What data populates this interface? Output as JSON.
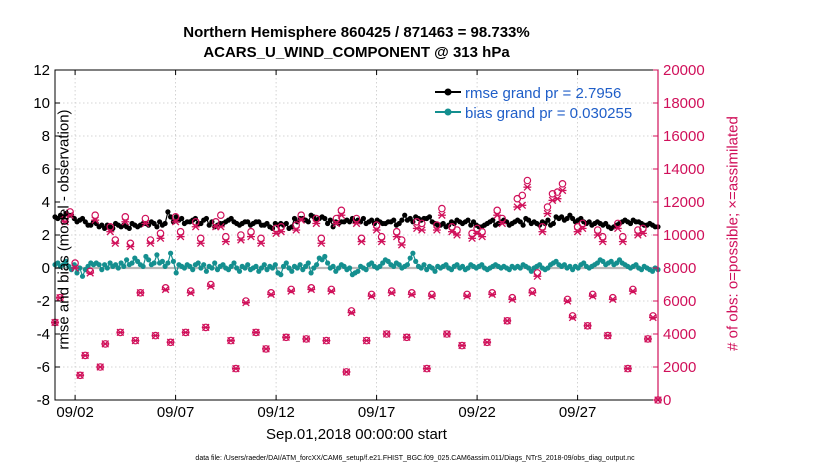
{
  "chart_data": {
    "type": "line",
    "title": "Northern Hemisphere 860425 / 871463 = 98.733%",
    "subtitle": "ACARS_U_WIND_COMPONENT @ 313 hPa",
    "xlabel": "Sep.01,2018 00:00:00 start",
    "ylabel_left": "rmse and bias (model - observation)",
    "ylabel_right": "# of obs: o=possible; ×=assimilated",
    "footer": "data file: /Users/raeder/DAI/ATM_forcXX/CAM6_setup/f.e21.FHIST_BGC.f09_025.CAM6assim.011/Diags_NTrS_2018-09/obs_diag_output.nc",
    "xlim": [
      1.0,
      31.0
    ],
    "ylim_left": [
      -8,
      12
    ],
    "ylim_right": [
      0,
      20000
    ],
    "x_ticks": [
      2,
      7,
      12,
      17,
      22,
      27
    ],
    "x_tick_labels": [
      "09/02",
      "09/07",
      "09/12",
      "09/17",
      "09/22",
      "09/27"
    ],
    "y_ticks_left": [
      "12",
      "10",
      "8",
      "6",
      "4",
      "2",
      "0",
      "-2",
      "-4",
      "-6",
      "-8"
    ],
    "y_ticks_right": [
      "20000",
      "18000",
      "16000",
      "14000",
      "12000",
      "10000",
      "8000",
      "6000",
      "4000",
      "2000",
      "0"
    ],
    "grid": true,
    "legend_position": "top-right",
    "colors": {
      "rmse": "#000000",
      "bias": "#148f8f",
      "obs": "#d0105a",
      "zero_line": "#b8b8b8"
    },
    "series": [
      {
        "name": "rmse grand pr = 2.7956",
        "label": "rmse grand pr = 2.7956",
        "color": "#000000",
        "marker": "circle",
        "values": [
          3.1,
          3.0,
          3.2,
          3.1,
          3.3,
          3.2,
          3.2,
          3.0,
          2.8,
          2.9,
          3.0,
          2.8,
          2.6,
          2.6,
          2.8,
          2.7,
          2.5,
          2.6,
          2.4,
          2.6,
          2.5,
          2.4,
          2.7,
          2.6,
          2.5,
          2.6,
          2.5,
          2.4,
          2.7,
          2.6,
          2.5,
          2.6,
          2.7,
          2.7,
          2.6,
          2.8,
          2.7,
          2.5,
          2.8,
          2.6,
          2.7,
          3.4,
          3.1,
          2.8,
          3.1,
          2.9,
          3.0,
          2.7,
          2.8,
          2.8,
          2.9,
          3.0,
          2.7,
          2.7,
          2.9,
          3.0,
          2.6,
          2.8,
          2.5,
          2.6,
          2.7,
          2.7,
          2.8,
          2.9,
          3.0,
          2.8,
          2.7,
          2.6,
          2.7,
          2.8,
          2.8,
          2.6,
          2.7,
          2.8,
          2.8,
          2.6,
          2.6,
          2.7,
          2.5,
          2.4,
          2.7,
          2.6,
          2.7,
          2.6,
          2.7,
          2.4,
          2.5,
          3.0,
          2.8,
          3.0,
          3.0,
          2.9,
          2.8,
          3.2,
          3.1,
          2.9,
          3.0,
          3.1,
          3.0,
          2.7,
          2.9,
          2.5,
          2.8,
          2.7,
          2.8,
          2.8,
          2.9,
          2.8,
          3.0,
          2.8,
          2.9,
          2.8,
          3.0,
          2.7,
          2.8,
          2.9,
          2.7,
          2.9,
          2.8,
          2.7,
          2.7,
          2.8,
          2.8,
          2.9,
          2.6,
          2.7,
          2.9,
          3.2,
          2.9,
          3.0,
          2.8,
          3.1,
          3.0,
          2.9,
          3.0,
          3.0,
          3.1,
          2.8,
          2.7,
          2.6,
          2.6,
          2.7,
          2.5,
          2.6,
          2.8,
          2.7,
          2.9,
          2.8,
          2.7,
          2.8,
          2.9,
          2.6,
          2.8,
          2.6,
          2.5,
          2.5,
          2.6,
          2.7,
          2.8,
          2.9,
          2.6,
          2.7,
          2.8,
          2.9,
          2.8,
          2.6,
          2.7,
          2.8,
          2.9,
          2.8,
          2.6,
          3.0,
          2.9,
          2.7,
          2.8,
          2.7,
          2.6,
          2.8,
          2.7,
          2.9,
          2.6,
          2.7,
          3.1,
          3.0,
          3.1,
          2.9,
          3.0,
          3.2,
          3.0,
          2.8,
          2.9,
          3.0,
          2.8,
          2.7,
          2.8,
          2.6,
          2.7,
          2.8,
          2.7,
          2.6,
          2.7,
          2.5,
          2.4,
          2.5,
          2.6,
          2.7,
          2.8,
          2.9,
          2.8,
          2.7,
          2.9,
          2.8,
          2.8,
          2.7,
          2.6,
          2.6,
          2.7,
          2.6,
          2.5,
          2.5
        ]
      },
      {
        "name": "bias grand pr = 0.030255",
        "label": "bias grand pr = 0.030255",
        "color": "#148f8f",
        "marker": "circle",
        "values": [
          0.2,
          0.3,
          0.1,
          0.2,
          0.4,
          0.1,
          -0.1,
          0.2,
          -0.3,
          0.0,
          -0.5,
          -0.1,
          0.1,
          0.3,
          0.2,
          0.3,
          0.2,
          -0.1,
          0.2,
          0.0,
          0.3,
          0.1,
          0.2,
          0.0,
          0.3,
          0.1,
          0.5,
          0.2,
          0.3,
          0.6,
          0.4,
          0.2,
          0.1,
          0.7,
          0.5,
          0.2,
          0.3,
          0.8,
          0.3,
          0.4,
          0.1,
          0.3,
          0.9,
          0.4,
          -0.3,
          0.2,
          0.1,
          0.0,
          0.2,
          0.1,
          -0.1,
          0.2,
          0.3,
          0.0,
          0.2,
          -0.2,
          0.1,
          0.0,
          0.3,
          -0.1,
          0.1,
          0.2,
          0.0,
          -0.1,
          0.1,
          0.3,
          0.0,
          -0.2,
          0.1,
          0.0,
          0.2,
          -0.1,
          0.0,
          0.1,
          -0.2,
          0.0,
          0.2,
          -0.1,
          0.1,
          0.0,
          0.2,
          -0.3,
          -0.4,
          0.1,
          0.3,
          0.0,
          -0.2,
          0.1,
          0.0,
          0.2,
          -0.1,
          0.1,
          0.3,
          -0.3,
          0.0,
          0.2,
          0.6,
          0.5,
          0.7,
          0.3,
          0.0,
          0.1,
          -0.2,
          0.0,
          0.2,
          0.1,
          -0.1,
          0.0,
          -0.4,
          -0.3,
          -0.2,
          0.1,
          0.0,
          -0.1,
          0.2,
          0.3,
          0.1,
          0.0,
          0.1,
          0.3,
          0.5,
          0.4,
          0.2,
          0.1,
          0.3,
          0.2,
          0.0,
          0.1,
          0.2,
          0.6,
          0.9,
          0.4,
          0.1,
          0.0,
          0.2,
          -0.1,
          0.1,
          0.0,
          -0.2,
          0.1,
          0.0,
          0.1,
          0.2,
          0.0,
          -0.1,
          0.1,
          0.2,
          0.0,
          0.1,
          -0.1,
          0.0,
          0.2,
          0.1,
          0.0,
          0.1,
          0.2,
          0.0,
          -0.1,
          0.0,
          0.1,
          0.2,
          0.1,
          0.0,
          0.1,
          0.0,
          -0.1,
          0.1,
          0.0,
          0.1,
          0.0,
          0.2,
          0.1,
          0.0,
          -0.2,
          0.0,
          0.1,
          0.2,
          0.0,
          -0.1,
          0.0,
          0.2,
          0.3,
          0.4,
          0.2,
          0.1,
          0.2,
          0.0,
          0.1,
          -0.1,
          0.1,
          0.0,
          0.2,
          0.3,
          0.1,
          0.0,
          0.1,
          0.2,
          0.3,
          0.5,
          0.4,
          0.2,
          0.3,
          0.4,
          0.2,
          0.3,
          0.5,
          0.3,
          0.2,
          0.1,
          0.0,
          0.1,
          0.2,
          0.0,
          -0.1,
          0.1,
          0.0,
          -0.1,
          -0.2,
          0.0,
          -0.1
        ]
      },
      {
        "name": "# of obs possible",
        "color": "#d0105a",
        "marker": "circle-open",
        "x": [
          1.0,
          1.25,
          1.5,
          1.75,
          2.0,
          2.25,
          2.5,
          2.75,
          3.0,
          3.25,
          3.5,
          3.75,
          4.0,
          4.25,
          4.5,
          4.75,
          5.0,
          5.25,
          5.5,
          5.75,
          6.0,
          6.25,
          6.5,
          6.75,
          7.0,
          7.25,
          7.5,
          7.75,
          8.0,
          8.25,
          8.5,
          8.75,
          9.0,
          9.25,
          9.5,
          9.75,
          10.0,
          10.25,
          10.5,
          10.75,
          11.0,
          11.25,
          11.5,
          11.75,
          12.0,
          12.25,
          12.5,
          12.75,
          13.0,
          13.25,
          13.5,
          13.75,
          14.0,
          14.25,
          14.5,
          14.75,
          15.0,
          15.25,
          15.5,
          15.75,
          16.0,
          16.25,
          16.5,
          16.75,
          17.0,
          17.25,
          17.5,
          17.75,
          18.0,
          18.25,
          18.5,
          18.75,
          19.0,
          19.25,
          19.5,
          19.75,
          20.0,
          20.25,
          20.5,
          20.75,
          21.0,
          21.25,
          21.5,
          21.75,
          22.0,
          22.25,
          22.5,
          22.75,
          23.0,
          23.25,
          23.5,
          23.75,
          24.0,
          24.25,
          24.5,
          24.75,
          25.0,
          25.25,
          25.5,
          25.75,
          26.0,
          26.25,
          26.5,
          26.75,
          27.0,
          27.25,
          27.5,
          27.75,
          28.0,
          28.25,
          28.5,
          28.75,
          29.0,
          29.25,
          29.5,
          29.75,
          30.0,
          30.25,
          30.5,
          30.75,
          31.0
        ],
        "values": [
          4700,
          6200,
          11000,
          11400,
          8300,
          1500,
          2700,
          7800,
          11200,
          2000,
          3400,
          10500,
          9700,
          4100,
          11100,
          9500,
          3600,
          6500,
          11000,
          9700,
          3900,
          10100,
          6800,
          3500,
          11100,
          10200,
          4100,
          6600,
          10800,
          9800,
          4400,
          7000,
          10800,
          11200,
          9900,
          3600,
          1900,
          10000,
          6000,
          10200,
          4100,
          9800,
          3100,
          6500,
          10400,
          10500,
          3800,
          6700,
          10600,
          11200,
          3700,
          6800,
          11000,
          9800,
          3600,
          6700,
          11000,
          11500,
          1700,
          5400,
          11000,
          9800,
          3600,
          6400,
          10600,
          9900,
          4000,
          6600,
          10200,
          9700,
          3800,
          6500,
          10800,
          10700,
          1900,
          6400,
          10600,
          11600,
          4000,
          10500,
          10300,
          3300,
          6400,
          10100,
          10400,
          10200,
          3500,
          6500,
          11500,
          11000,
          4800,
          6200,
          12200,
          12400,
          13300,
          6600,
          7700,
          10500,
          11700,
          12500,
          12600,
          13100,
          6100,
          5100,
          10500,
          10700,
          4500,
          6400,
          10300,
          9900,
          3900,
          6200,
          10700,
          9900,
          1900,
          6700,
          10300,
          10400,
          3700,
          5100,
          0
        ]
      },
      {
        "name": "# of obs assimilated",
        "color": "#d0105a",
        "marker": "x",
        "x": [
          1.0,
          1.25,
          1.5,
          1.75,
          2.0,
          2.25,
          2.5,
          2.75,
          3.0,
          3.25,
          3.5,
          3.75,
          4.0,
          4.25,
          4.5,
          4.75,
          5.0,
          5.25,
          5.5,
          5.75,
          6.0,
          6.25,
          6.5,
          6.75,
          7.0,
          7.25,
          7.5,
          7.75,
          8.0,
          8.25,
          8.5,
          8.75,
          9.0,
          9.25,
          9.5,
          9.75,
          10.0,
          10.25,
          10.5,
          10.75,
          11.0,
          11.25,
          11.5,
          11.75,
          12.0,
          12.25,
          12.5,
          12.75,
          13.0,
          13.25,
          13.5,
          13.75,
          14.0,
          14.25,
          14.5,
          14.75,
          15.0,
          15.25,
          15.5,
          15.75,
          16.0,
          16.25,
          16.5,
          16.75,
          17.0,
          17.25,
          17.5,
          17.75,
          18.0,
          18.25,
          18.5,
          18.75,
          19.0,
          19.25,
          19.5,
          19.75,
          20.0,
          20.25,
          20.5,
          20.75,
          21.0,
          21.25,
          21.5,
          21.75,
          22.0,
          22.25,
          22.5,
          22.75,
          23.0,
          23.25,
          23.5,
          23.75,
          24.0,
          24.25,
          24.5,
          24.75,
          25.0,
          25.25,
          25.5,
          25.75,
          26.0,
          26.25,
          26.5,
          26.75,
          27.0,
          27.25,
          27.5,
          27.75,
          28.0,
          28.25,
          28.5,
          28.75,
          29.0,
          29.25,
          29.5,
          29.75,
          30.0,
          30.25,
          30.5,
          30.75,
          31.0
        ],
        "values": [
          4700,
          6200,
          10800,
          11200,
          8000,
          1500,
          2700,
          7700,
          10900,
          2000,
          3400,
          10200,
          9500,
          4100,
          10800,
          9300,
          3600,
          6500,
          10700,
          9500,
          3900,
          9800,
          6700,
          3500,
          10800,
          9900,
          4100,
          6500,
          10500,
          9500,
          4400,
          6900,
          10500,
          10500,
          9600,
          3600,
          1900,
          9700,
          5900,
          9900,
          4100,
          9500,
          3100,
          6400,
          10100,
          10200,
          3800,
          6600,
          10300,
          10900,
          3700,
          6700,
          10700,
          9500,
          3600,
          6600,
          10700,
          11200,
          1700,
          5300,
          10700,
          9600,
          3600,
          6300,
          10300,
          9600,
          4000,
          6500,
          9900,
          9400,
          3800,
          6400,
          10400,
          10300,
          1900,
          6300,
          10300,
          11200,
          4000,
          10200,
          10000,
          3300,
          6300,
          9800,
          10100,
          9900,
          3500,
          6400,
          11200,
          10700,
          4800,
          6100,
          11700,
          11800,
          12900,
          6500,
          7500,
          10200,
          11300,
          12100,
          12200,
          12700,
          6000,
          5000,
          10200,
          10400,
          4500,
          6300,
          10000,
          9600,
          3900,
          6100,
          10400,
          9600,
          1900,
          6600,
          10000,
          10100,
          3700,
          5000,
          0
        ]
      }
    ]
  }
}
